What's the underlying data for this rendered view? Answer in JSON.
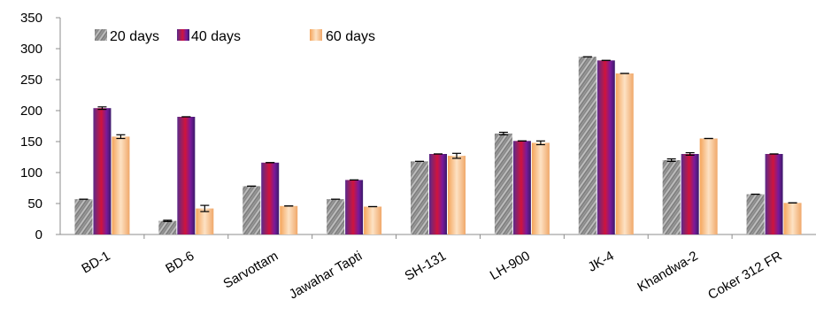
{
  "chart_data": {
    "type": "bar",
    "categories": [
      "BD-1",
      "BD-6",
      "Sarvottam",
      "Jawahar Tapti",
      "SH-131",
      "LH-900",
      "JK-4",
      "Khandwa-2",
      "Coker 312 FR"
    ],
    "series": [
      {
        "name": "20 days",
        "values": [
          57,
          22,
          78,
          57,
          118,
          163,
          287,
          120,
          65
        ],
        "errors": [
          0,
          1,
          0,
          0,
          0,
          2,
          0,
          2,
          0
        ]
      },
      {
        "name": "40 days",
        "values": [
          204,
          190,
          116,
          88,
          130,
          151,
          281,
          130,
          130
        ],
        "errors": [
          2,
          0,
          0,
          0,
          0,
          0,
          0,
          2,
          0
        ]
      },
      {
        "name": "60 days",
        "values": [
          158,
          42,
          46,
          45,
          127,
          148,
          260,
          155,
          51
        ],
        "errors": [
          3,
          5,
          0,
          0,
          4,
          3,
          0,
          0,
          0
        ]
      }
    ],
    "yticks": [
      "0",
      "50",
      "100",
      "150",
      "200",
      "250",
      "300",
      "350"
    ],
    "ylim": [
      0,
      350
    ],
    "grid": false,
    "legend_position": "top-left",
    "colors": {
      "s1": "#8a8a8a",
      "s2": "#6a1f8a",
      "s3": "#f2b06a",
      "axis": "#8c8c8c",
      "error": "#000000"
    }
  }
}
